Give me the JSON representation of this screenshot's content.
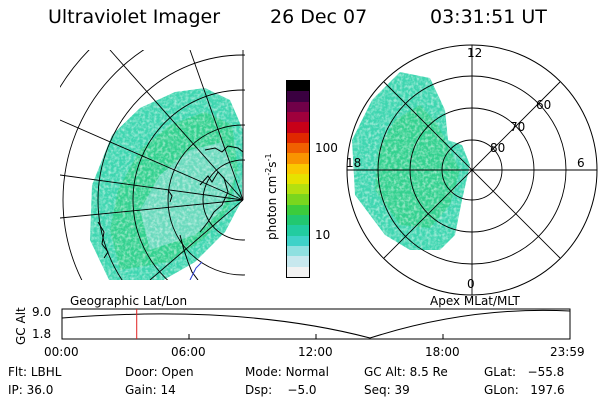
{
  "header": {
    "instrument": "Ultraviolet Imager",
    "date": "26 Dec 07",
    "time": "03:31:51 UT"
  },
  "colorbar": {
    "label": "photon cm",
    "label_sup1": "-2",
    "label_mid": "s",
    "label_sup2": "-1",
    "ticks": [
      "100",
      "10"
    ],
    "tick_values": [
      100,
      10
    ],
    "range": [
      2,
      500
    ],
    "colors": [
      "#f2f2f2",
      "#c8e8ee",
      "#8fe0e0",
      "#3fd2c8",
      "#22cca0",
      "#22c870",
      "#3ccc3c",
      "#7ad61e",
      "#b4e010",
      "#e6e200",
      "#fac800",
      "#f99400",
      "#f06000",
      "#e02800",
      "#c80018",
      "#a0003c",
      "#700048",
      "#3a0040",
      "#000000"
    ]
  },
  "left_map": {
    "caption": "Geographic Lat/Lon"
  },
  "right_map": {
    "caption": "Apex MLat/MLT",
    "lat_labels": [
      "60",
      "70",
      "80"
    ],
    "mlt_labels": [
      "12",
      "18",
      "6",
      "0"
    ]
  },
  "alt_plot": {
    "ylabel": "GC Alt",
    "y_ticks": [
      "9.0",
      "1.8"
    ],
    "x_ticks": [
      "00:00",
      "06:00",
      "12:00",
      "18:00",
      "23:59"
    ],
    "marker_hours": 3.53
  },
  "info": {
    "flt_label": "Flt:",
    "flt_value": "LBHL",
    "door_label": "Door:",
    "door_value": "Open",
    "mode_label": "Mode:",
    "mode_value": "Normal",
    "gcalt_label": "GC Alt:",
    "gcalt_value": "8.5 Re",
    "glat_label": "GLat:",
    "glat_value": "−55.8",
    "ip_label": "IP:",
    "ip_value": "36.0",
    "gain_label": "Gain:",
    "gain_value": "14",
    "dsp_label": "Dsp:",
    "dsp_value": "−5.0",
    "seq_label": "Seq:",
    "seq_value": "39",
    "glon_label": "GLon:",
    "glon_value": "197.6"
  }
}
